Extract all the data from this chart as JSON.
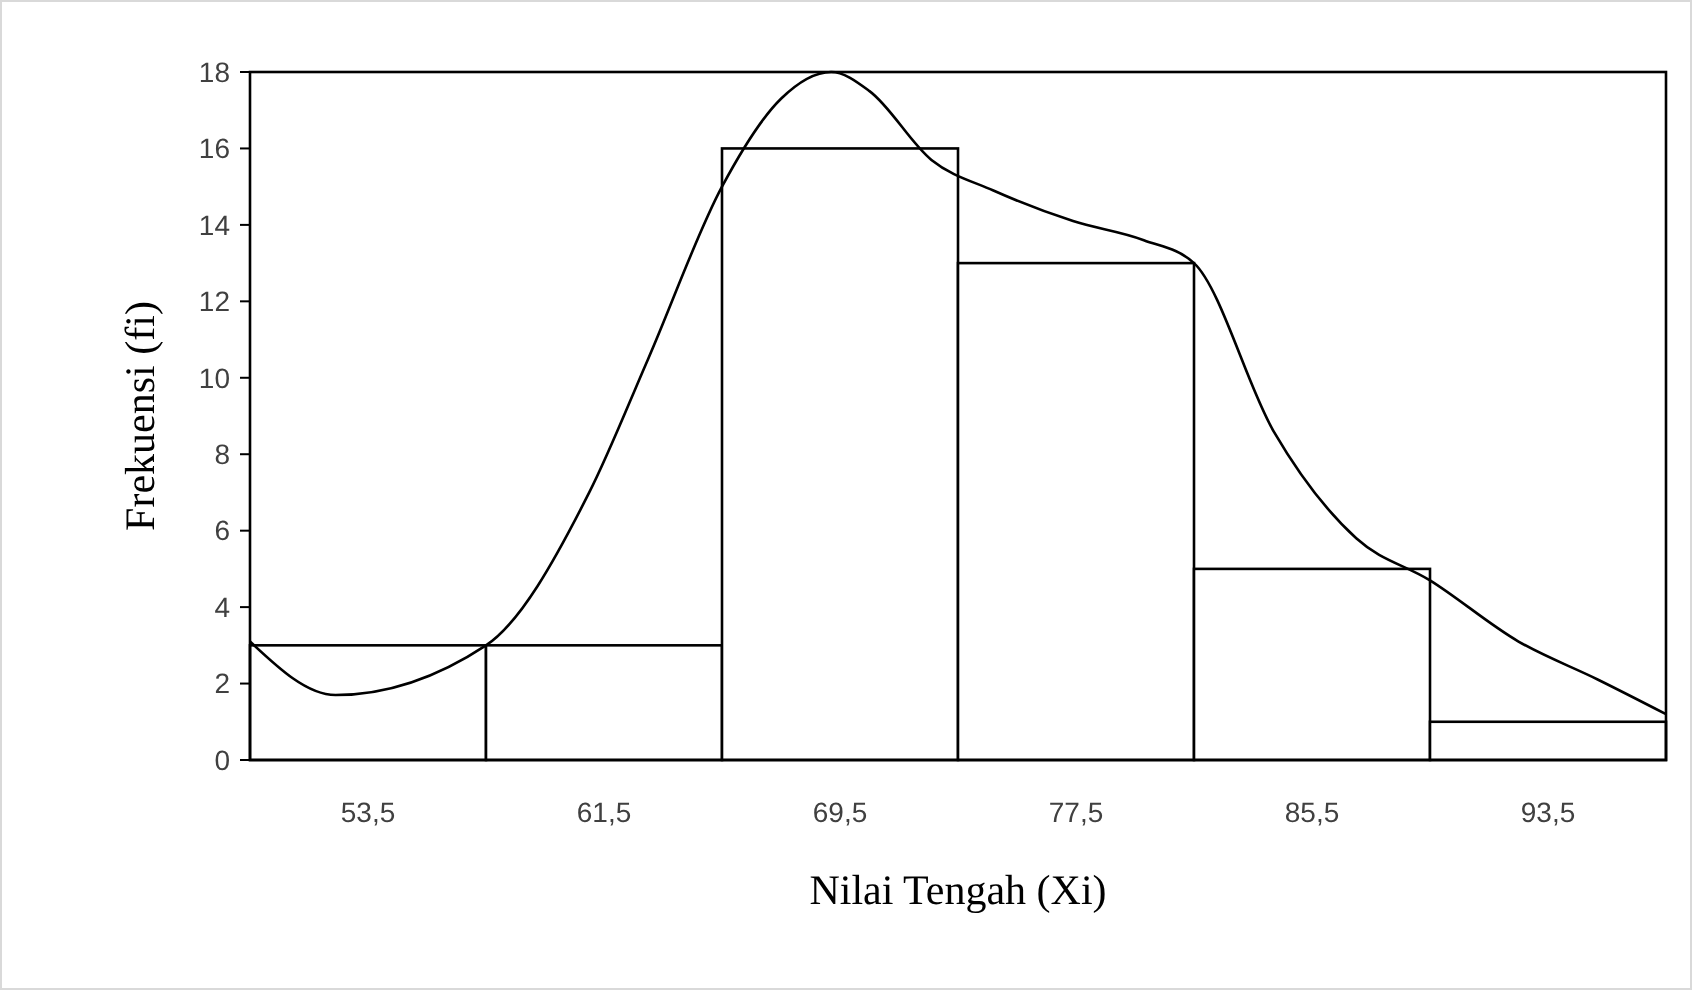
{
  "chart_data": {
    "type": "histogram",
    "xlabel": "Nilai Tengah (Xi)",
    "ylabel": "Frekuensi (fi)",
    "bins": [
      49.5,
      57.5,
      65.5,
      73.5,
      81.5,
      89.5,
      97.5
    ],
    "values": [
      3,
      3,
      16,
      13,
      5,
      1
    ],
    "color": "#ffffff",
    "xlim": [
      49.5,
      97.5
    ],
    "xticks": [
      {
        "value": 53.5,
        "label": "53,5"
      },
      {
        "value": 61.5,
        "label": "61,5"
      },
      {
        "value": 69.5,
        "label": "69,5"
      },
      {
        "value": 77.5,
        "label": "77,5"
      },
      {
        "value": 85.5,
        "label": "85,5"
      },
      {
        "value": 93.5,
        "label": "93,5"
      }
    ],
    "ylim": [
      0,
      18
    ],
    "yticks": [
      0,
      2,
      4,
      6,
      8,
      10,
      12,
      14,
      16,
      18
    ],
    "grid": false,
    "series": [
      {
        "type": "line",
        "color": "#000000",
        "x": [
          49.5,
          52.4,
          57.5,
          61,
          63,
          65.5,
          67.5,
          69.2,
          70.5,
          72.6,
          74.7,
          77.4,
          79.8,
          81.5,
          84.2,
          87,
          89.5,
          92.5,
          95.2,
          97.5
        ],
        "values": [
          3.1,
          1.7,
          3,
          7,
          10.5,
          15,
          17.3,
          18,
          17.5,
          15.7,
          14.9,
          14.1,
          13.6,
          13,
          8.6,
          5.8,
          4.7,
          3.1,
          2.1,
          1.2
        ]
      }
    ]
  }
}
